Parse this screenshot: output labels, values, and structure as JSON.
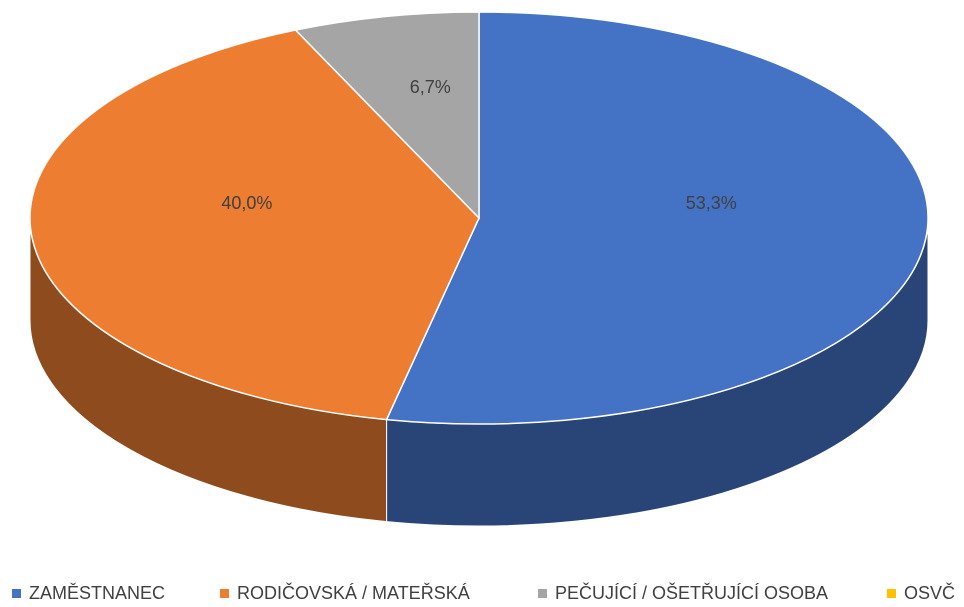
{
  "chart_data": {
    "type": "pie",
    "categories": [
      "ZAMĚSTNANEC",
      "RODIČOVSKÁ / MATEŘSKÁ",
      "PEČUJÍCÍ / OŠETŘUJÍCÍ OSOBA",
      "OSVČ"
    ],
    "values": [
      53.3,
      40.0,
      6.7,
      0
    ],
    "value_labels": [
      "53,3%",
      "40,0%",
      "6,7%",
      null
    ],
    "colors": [
      "#4472c4",
      "#ed7d31",
      "#a5a5a5",
      "#ffc000"
    ],
    "legend": "bottom"
  }
}
